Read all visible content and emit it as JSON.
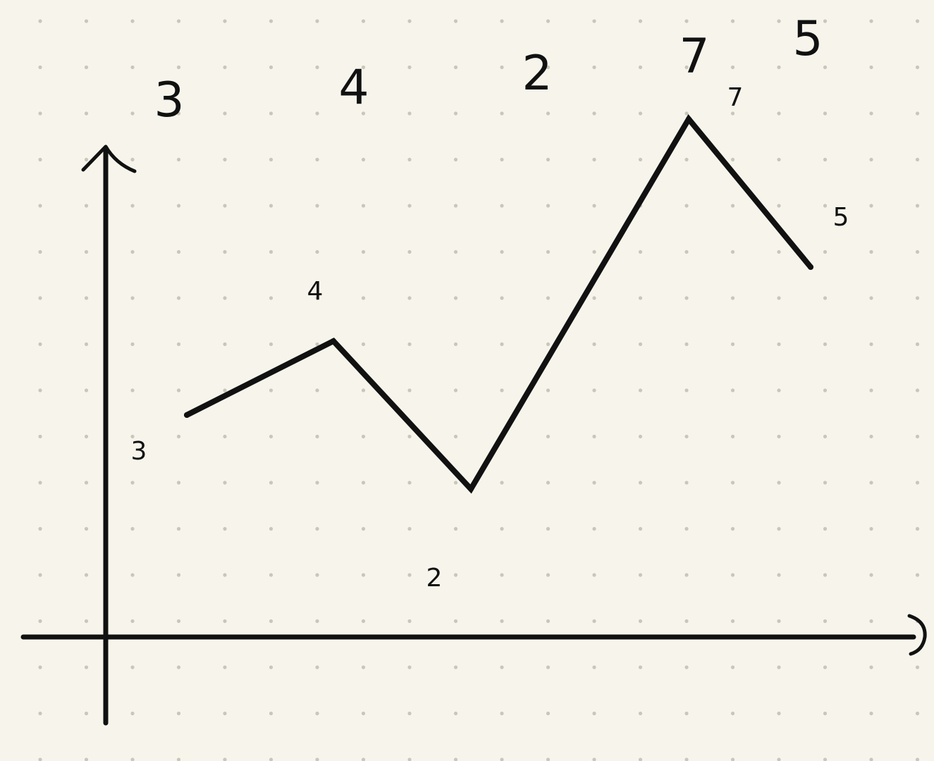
{
  "page": {
    "background": "#f7f5eb",
    "dot_color": "#c9c6bb",
    "ink_color": "#111111"
  },
  "chart_data": {
    "type": "line",
    "title": "",
    "xlabel": "",
    "ylabel": "",
    "grid": "dotted",
    "legend": "none",
    "header_values": [
      "3",
      "4",
      "2",
      "7",
      "5"
    ],
    "x": [
      1,
      2,
      3,
      4,
      5
    ],
    "values": [
      3,
      4,
      2,
      7,
      5
    ],
    "point_labels": [
      "3",
      "4",
      "2",
      "7",
      "5"
    ],
    "ylim": [
      0,
      8
    ]
  }
}
